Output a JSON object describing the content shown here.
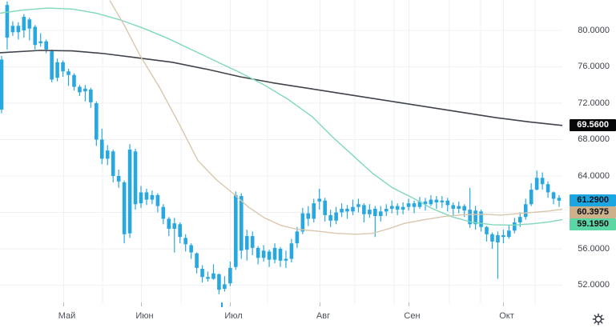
{
  "colors": {
    "background": "#ffffff",
    "candle": "#29a8e0",
    "grid": "#eef0f3",
    "tick": "#b6bac3",
    "y_label_text": "#3e424c",
    "x_label_text": "#4c505a",
    "ma_long": "#3f434b",
    "ma_mid": "#7fd9b9",
    "ma_short": "#d9c7ac",
    "highlight_tick": "#29a8e0",
    "gear": "#3a3e48"
  },
  "icons": {
    "settings": "gear-icon"
  },
  "chart_data": {
    "type": "candlestick",
    "title": "",
    "xlabel": "",
    "ylabel": "",
    "grid": true,
    "ylim_visible": [
      49.9,
      83.3
    ],
    "x_axis": {
      "month_labels": [
        "Май",
        "Июн",
        "Июл",
        "Авг",
        "Сен",
        "Окт"
      ],
      "month_start_indices": [
        11,
        25,
        41,
        57,
        73,
        90
      ],
      "highlight_tick_index": 39.5
    },
    "y_axis": {
      "tick_labels": [
        "80.0000",
        "76.0000",
        "72.0000",
        "68.0000",
        "64.0000",
        "56.0000",
        "52.0000"
      ],
      "tick_prices": [
        80,
        76,
        72,
        68,
        64,
        56,
        52
      ],
      "gridline_prices": [
        80,
        76,
        72,
        68,
        64,
        60,
        56,
        52
      ]
    },
    "last_price": 61.29,
    "price_badges": {
      "ma_long": {
        "text": "69.5600",
        "price": 69.56,
        "bg": "#060709",
        "fg": "#ffffff"
      },
      "last": {
        "text": "61.2900",
        "price": 61.29,
        "bg": "#1ba6e2",
        "fg": "#071219"
      },
      "ma_short": {
        "text": "60.3975",
        "price": 60.3975,
        "bg": "#cdb18b",
        "fg": "#0a0d14"
      },
      "ma_mid": {
        "text": "59.1950",
        "price": 59.195,
        "bg": "#5cd6a4",
        "fg": "#0a0d14"
      }
    },
    "candles_format": [
      "open",
      "high",
      "low",
      "close"
    ],
    "candles": [
      [
        76.8,
        77.2,
        70.9,
        71.3
      ],
      [
        79.2,
        83.2,
        77.9,
        82.8
      ],
      [
        80.5,
        81.0,
        79.4,
        79.8
      ],
      [
        79.8,
        80.9,
        79.0,
        80.5
      ],
      [
        80.0,
        81.8,
        79.2,
        81.5
      ],
      [
        81.2,
        81.4,
        78.9,
        80.2
      ],
      [
        80.4,
        80.6,
        77.9,
        78.4
      ],
      [
        78.6,
        79.7,
        78.2,
        78.8
      ],
      [
        78.8,
        79.0,
        77.5,
        77.9
      ],
      [
        77.7,
        77.9,
        74.3,
        74.6
      ],
      [
        74.8,
        76.9,
        74.4,
        76.5
      ],
      [
        76.5,
        76.7,
        74.9,
        75.5
      ],
      [
        75.5,
        75.8,
        73.9,
        75.1
      ],
      [
        75.1,
        75.3,
        73.4,
        73.8
      ],
      [
        73.8,
        74.0,
        72.8,
        73.2
      ],
      [
        73.3,
        74.0,
        72.2,
        73.6
      ],
      [
        73.5,
        73.7,
        71.5,
        72.1
      ],
      [
        72.0,
        72.2,
        67.3,
        68.0
      ],
      [
        68.0,
        69.2,
        65.3,
        65.9
      ],
      [
        65.9,
        67.4,
        65.2,
        66.8
      ],
      [
        66.7,
        66.9,
        63.3,
        64.0
      ],
      [
        64.0,
        64.7,
        62.7,
        63.4
      ],
      [
        63.3,
        63.5,
        56.6,
        57.6
      ],
      [
        57.7,
        67.5,
        57.2,
        66.9
      ],
      [
        66.7,
        67.0,
        60.3,
        60.9
      ],
      [
        61.0,
        62.9,
        60.5,
        62.2
      ],
      [
        62.2,
        62.6,
        60.8,
        61.4
      ],
      [
        61.4,
        62.4,
        60.9,
        61.9
      ],
      [
        61.9,
        62.1,
        60.0,
        60.7
      ],
      [
        60.6,
        60.9,
        58.7,
        59.3
      ],
      [
        59.3,
        59.5,
        57.4,
        58.2
      ],
      [
        58.2,
        59.4,
        55.6,
        58.8
      ],
      [
        58.7,
        58.9,
        56.6,
        57.3
      ],
      [
        57.2,
        57.6,
        55.7,
        56.5
      ],
      [
        56.4,
        56.6,
        54.9,
        55.6
      ],
      [
        55.5,
        55.6,
        53.3,
        53.9
      ],
      [
        53.8,
        54.2,
        52.3,
        52.9
      ],
      [
        52.9,
        53.5,
        52.4,
        52.7
      ],
      [
        52.7,
        54.3,
        52.6,
        53.3
      ],
      [
        53.2,
        53.3,
        51.0,
        51.5
      ],
      [
        51.6,
        53.0,
        51.3,
        52.1
      ],
      [
        52.2,
        54.6,
        51.9,
        53.9
      ],
      [
        54.0,
        62.3,
        53.7,
        61.9
      ],
      [
        61.8,
        62.1,
        54.9,
        55.8
      ],
      [
        55.9,
        58.1,
        54.7,
        57.4
      ],
      [
        57.4,
        57.9,
        55.3,
        56.1
      ],
      [
        56.1,
        56.3,
        54.3,
        55.0
      ],
      [
        55.0,
        56.4,
        54.6,
        55.8
      ],
      [
        55.7,
        55.9,
        54.0,
        54.8
      ],
      [
        54.8,
        56.6,
        54.4,
        56.1
      ],
      [
        56.0,
        56.2,
        54.0,
        54.7
      ],
      [
        54.7,
        55.8,
        53.9,
        54.9
      ],
      [
        54.9,
        57.1,
        54.5,
        56.6
      ],
      [
        56.6,
        58.4,
        56.1,
        57.9
      ],
      [
        57.9,
        60.5,
        57.6,
        59.9
      ],
      [
        59.9,
        60.7,
        58.5,
        59.3
      ],
      [
        59.3,
        61.5,
        58.9,
        61.0
      ],
      [
        61.2,
        62.6,
        60.3,
        61.5
      ],
      [
        61.3,
        61.6,
        59.0,
        59.7
      ],
      [
        59.7,
        60.3,
        58.4,
        59.1
      ],
      [
        59.1,
        60.6,
        58.7,
        60.0
      ],
      [
        60.0,
        61.0,
        59.5,
        60.4
      ],
      [
        60.4,
        60.8,
        59.3,
        60.1
      ],
      [
        60.1,
        61.4,
        59.7,
        60.6
      ],
      [
        60.6,
        61.5,
        60.0,
        60.9
      ],
      [
        60.8,
        61.0,
        58.9,
        59.8
      ],
      [
        59.8,
        60.9,
        59.4,
        60.3
      ],
      [
        60.4,
        60.7,
        57.3,
        59.6
      ],
      [
        59.6,
        60.7,
        59.0,
        60.1
      ],
      [
        60.1,
        60.9,
        59.6,
        60.4
      ],
      [
        60.4,
        61.3,
        59.9,
        60.7
      ],
      [
        60.7,
        61.0,
        59.7,
        60.3
      ],
      [
        60.3,
        61.1,
        59.8,
        60.6
      ],
      [
        60.6,
        61.5,
        60.2,
        61.0
      ],
      [
        61.0,
        61.3,
        59.9,
        60.6
      ],
      [
        60.6,
        61.7,
        60.4,
        61.2
      ],
      [
        61.2,
        61.6,
        60.2,
        60.9
      ],
      [
        60.9,
        61.9,
        60.7,
        61.4
      ],
      [
        61.4,
        61.8,
        60.4,
        61.1
      ],
      [
        61.1,
        61.8,
        60.5,
        61.3
      ],
      [
        61.3,
        61.6,
        60.1,
        60.8
      ],
      [
        60.8,
        61.1,
        59.7,
        60.4
      ],
      [
        60.4,
        61.2,
        59.9,
        60.7
      ],
      [
        60.7,
        60.9,
        59.5,
        60.2
      ],
      [
        60.3,
        62.7,
        58.3,
        58.7
      ],
      [
        58.7,
        60.7,
        58.1,
        60.2
      ],
      [
        60.1,
        60.3,
        57.9,
        58.4
      ],
      [
        58.4,
        58.5,
        56.8,
        57.6
      ],
      [
        57.6,
        57.8,
        56.0,
        56.8
      ],
      [
        56.7,
        57.9,
        52.7,
        57.5
      ],
      [
        57.5,
        58.1,
        56.6,
        57.3
      ],
      [
        57.3,
        58.6,
        57.1,
        58.0
      ],
      [
        58.0,
        59.4,
        57.7,
        58.9
      ],
      [
        58.9,
        60.0,
        58.4,
        59.5
      ],
      [
        59.5,
        61.5,
        59.2,
        60.9
      ],
      [
        60.9,
        63.2,
        60.7,
        62.5
      ],
      [
        62.5,
        64.6,
        62.4,
        63.8
      ],
      [
        63.8,
        64.4,
        62.5,
        63.1
      ],
      [
        63.1,
        63.4,
        61.6,
        62.2
      ],
      [
        62.2,
        62.3,
        60.9,
        61.5
      ],
      [
        61.6,
        61.9,
        60.6,
        61.29
      ]
    ],
    "moving_averages": [
      {
        "name": "ma-long-black",
        "last_value": 69.56,
        "color": "#3f434b",
        "points": [
          [
            0,
            77.55
          ],
          [
            50,
            77.8
          ],
          [
            90,
            77.75
          ],
          [
            130,
            77.45
          ],
          [
            170,
            77.0
          ],
          [
            215,
            76.5
          ],
          [
            260,
            75.7
          ],
          [
            300,
            74.9
          ],
          [
            340,
            74.25
          ],
          [
            380,
            73.7
          ],
          [
            420,
            73.15
          ],
          [
            460,
            72.6
          ],
          [
            500,
            72.05
          ],
          [
            540,
            71.5
          ],
          [
            580,
            70.95
          ],
          [
            620,
            70.4
          ],
          [
            660,
            69.95
          ],
          [
            702,
            69.56
          ]
        ]
      },
      {
        "name": "ma-mid-green",
        "last_value": 59.195,
        "color": "#7fd9b9",
        "points": [
          [
            0,
            81.9
          ],
          [
            30,
            82.25
          ],
          [
            60,
            82.45
          ],
          [
            90,
            82.35
          ],
          [
            120,
            81.9
          ],
          [
            150,
            81.15
          ],
          [
            180,
            80.2
          ],
          [
            210,
            79.1
          ],
          [
            240,
            77.85
          ],
          [
            270,
            76.6
          ],
          [
            300,
            75.35
          ],
          [
            330,
            74.0
          ],
          [
            360,
            72.4
          ],
          [
            390,
            70.5
          ],
          [
            415,
            68.3
          ],
          [
            440,
            66.3
          ],
          [
            465,
            64.3
          ],
          [
            490,
            62.7
          ],
          [
            515,
            61.6
          ],
          [
            540,
            60.4
          ],
          [
            565,
            59.5
          ],
          [
            590,
            58.9
          ],
          [
            615,
            58.65
          ],
          [
            640,
            58.6
          ],
          [
            665,
            58.75
          ],
          [
            685,
            58.95
          ],
          [
            702,
            59.2
          ]
        ]
      },
      {
        "name": "ma-short-tan",
        "last_value": 60.3975,
        "color": "#d9c7ac",
        "points": [
          [
            137,
            83.3
          ],
          [
            155,
            80.6
          ],
          [
            175,
            77.2
          ],
          [
            200,
            73.6
          ],
          [
            225,
            69.5
          ],
          [
            247,
            65.7
          ],
          [
            270,
            63.6
          ],
          [
            290,
            62.15
          ],
          [
            310,
            60.6
          ],
          [
            330,
            59.4
          ],
          [
            350,
            58.6
          ],
          [
            370,
            58.15
          ],
          [
            395,
            57.95
          ],
          [
            420,
            57.7
          ],
          [
            445,
            57.6
          ],
          [
            465,
            57.7
          ],
          [
            485,
            58.2
          ],
          [
            505,
            58.8
          ],
          [
            530,
            59.2
          ],
          [
            555,
            59.55
          ],
          [
            580,
            59.75
          ],
          [
            605,
            59.8
          ],
          [
            625,
            59.7
          ],
          [
            645,
            59.85
          ],
          [
            665,
            60.0
          ],
          [
            685,
            60.15
          ],
          [
            702,
            60.35
          ]
        ]
      }
    ]
  }
}
